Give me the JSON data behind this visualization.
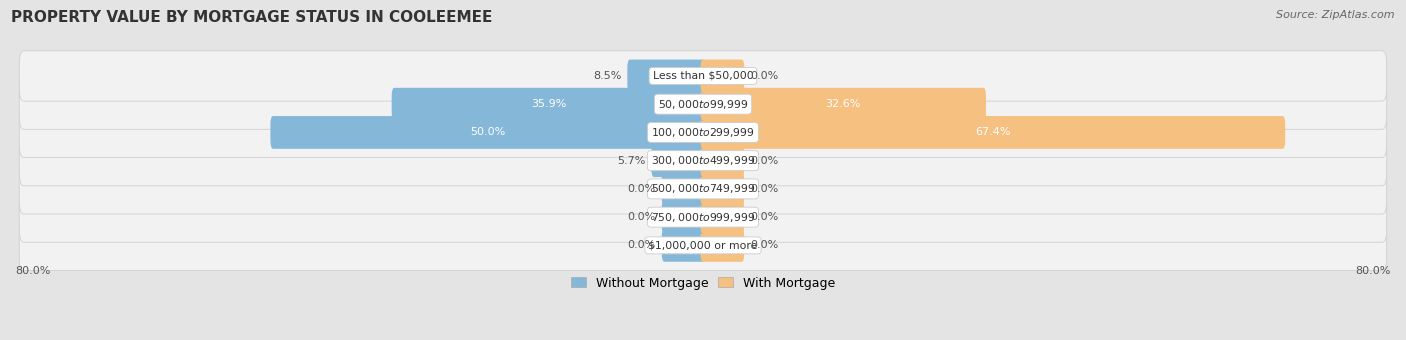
{
  "title": "PROPERTY VALUE BY MORTGAGE STATUS IN COOLEEMEE",
  "source": "Source: ZipAtlas.com",
  "categories": [
    "Less than $50,000",
    "$50,000 to $99,999",
    "$100,000 to $299,999",
    "$300,000 to $499,999",
    "$500,000 to $749,999",
    "$750,000 to $999,999",
    "$1,000,000 or more"
  ],
  "without_mortgage": [
    8.5,
    35.9,
    50.0,
    5.7,
    0.0,
    0.0,
    0.0
  ],
  "with_mortgage": [
    0.0,
    32.6,
    67.4,
    0.0,
    0.0,
    0.0,
    0.0
  ],
  "xlim": [
    -80,
    80
  ],
  "bar_color_blue": "#85b8d8",
  "bar_color_orange": "#f5c080",
  "bg_color": "#e4e4e4",
  "row_bg_color": "#f2f2f2",
  "row_border_color": "#d0d0d0",
  "title_fontsize": 11,
  "label_fontsize": 8,
  "legend_fontsize": 9,
  "source_fontsize": 8,
  "min_stub": 4.5
}
